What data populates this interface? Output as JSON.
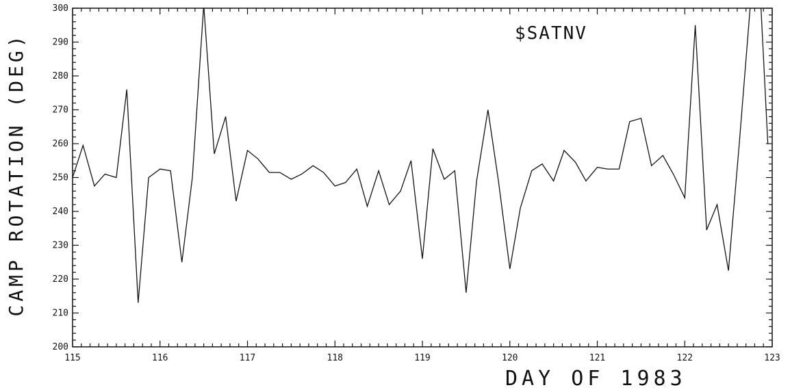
{
  "chart_data": {
    "type": "line",
    "title": "$SATNV",
    "xlabel": "DAY OF 1983",
    "ylabel": "CAMP ROTATION (DEG)",
    "xlim": [
      115,
      123
    ],
    "ylim": [
      200,
      300
    ],
    "x_ticks": [
      "115",
      "116",
      "117",
      "118",
      "119",
      "120",
      "121",
      "122",
      "123"
    ],
    "y_ticks": [
      "200",
      "210",
      "220",
      "230",
      "240",
      "250",
      "260",
      "270",
      "280",
      "290",
      "300"
    ],
    "grid": false,
    "series": [
      {
        "color": "#111111",
        "points": [
          [
            115.0,
            250
          ],
          [
            115.12,
            259.5
          ],
          [
            115.25,
            247.5
          ],
          [
            115.37,
            251
          ],
          [
            115.5,
            250
          ],
          [
            115.62,
            276
          ],
          [
            115.75,
            213
          ],
          [
            115.87,
            250
          ],
          [
            116.0,
            252.5
          ],
          [
            116.12,
            252
          ],
          [
            116.25,
            225
          ],
          [
            116.37,
            250
          ],
          [
            116.5,
            301
          ],
          [
            116.62,
            257
          ],
          [
            116.75,
            268
          ],
          [
            116.87,
            243
          ],
          [
            117.0,
            258
          ],
          [
            117.12,
            255.5
          ],
          [
            117.25,
            251.5
          ],
          [
            117.37,
            251.5
          ],
          [
            117.5,
            249.5
          ],
          [
            117.62,
            251
          ],
          [
            117.75,
            253.5
          ],
          [
            117.87,
            251.5
          ],
          [
            118.0,
            247.5
          ],
          [
            118.12,
            248.5
          ],
          [
            118.25,
            252.5
          ],
          [
            118.37,
            241.5
          ],
          [
            118.5,
            252
          ],
          [
            118.62,
            242
          ],
          [
            118.75,
            246
          ],
          [
            118.87,
            255
          ],
          [
            119.0,
            226
          ],
          [
            119.12,
            258.5
          ],
          [
            119.25,
            249.5
          ],
          [
            119.37,
            252
          ],
          [
            119.5,
            216
          ],
          [
            119.62,
            249
          ],
          [
            119.75,
            270
          ],
          [
            119.87,
            249
          ],
          [
            120.0,
            223
          ],
          [
            120.12,
            241
          ],
          [
            120.25,
            252
          ],
          [
            120.37,
            254
          ],
          [
            120.5,
            249
          ],
          [
            120.62,
            258
          ],
          [
            120.75,
            254.5
          ],
          [
            120.87,
            249
          ],
          [
            121.0,
            253
          ],
          [
            121.12,
            252.5
          ],
          [
            121.25,
            252.5
          ],
          [
            121.37,
            266.5
          ],
          [
            121.5,
            267.5
          ],
          [
            121.62,
            253.5
          ],
          [
            121.75,
            256.5
          ],
          [
            121.87,
            251
          ],
          [
            122.0,
            244
          ],
          [
            122.12,
            295
          ],
          [
            122.25,
            234.5
          ],
          [
            122.37,
            242
          ],
          [
            122.5,
            222.5
          ],
          [
            122.62,
            259
          ],
          [
            122.75,
            301
          ],
          [
            122.87,
            301
          ],
          [
            122.95,
            260
          ]
        ]
      }
    ]
  }
}
